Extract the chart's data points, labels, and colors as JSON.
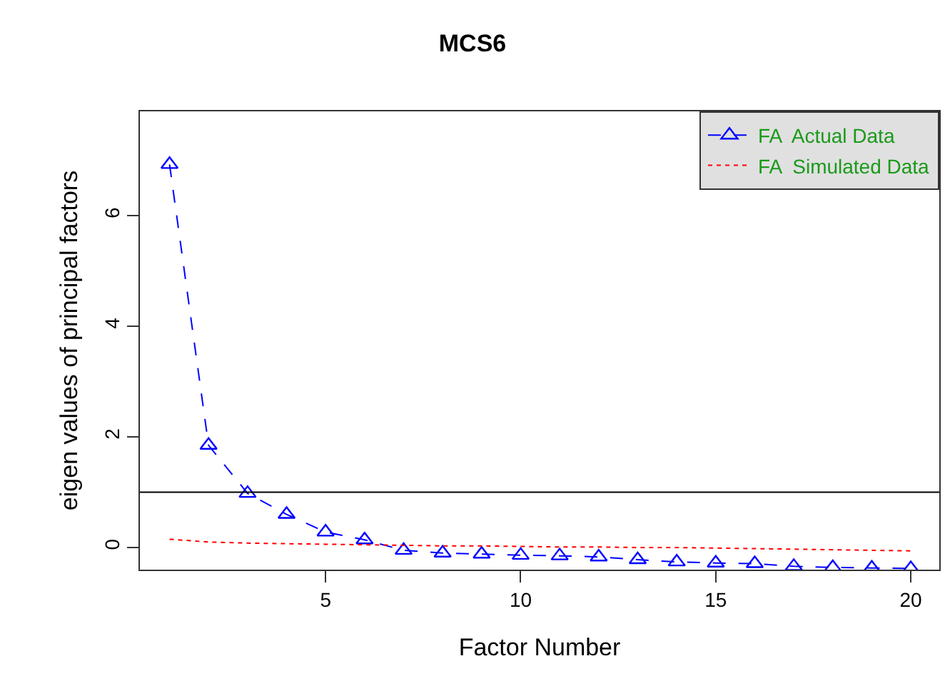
{
  "chart_data": {
    "type": "line",
    "title": "MCS6",
    "xlabel": "Factor Number",
    "ylabel": "eigen values of principal factors",
    "x": [
      1,
      2,
      3,
      4,
      5,
      6,
      7,
      8,
      9,
      10,
      11,
      12,
      13,
      14,
      15,
      16,
      17,
      18,
      19,
      20
    ],
    "series": [
      {
        "name": "FA  Actual Data",
        "color": "#0000ff",
        "marker": "triangle",
        "line_style": "dashed",
        "values": [
          6.93,
          1.85,
          0.98,
          0.6,
          0.28,
          0.14,
          -0.05,
          -0.1,
          -0.12,
          -0.14,
          -0.15,
          -0.17,
          -0.22,
          -0.26,
          -0.28,
          -0.29,
          -0.34,
          -0.36,
          -0.37,
          -0.38
        ]
      },
      {
        "name": "FA  Simulated Data",
        "color": "#ff0000",
        "marker": "none",
        "line_style": "dotted",
        "values": [
          0.15,
          0.1,
          0.08,
          0.07,
          0.06,
          0.05,
          0.04,
          0.03,
          0.03,
          0.02,
          0.01,
          0.01,
          0.0,
          0.0,
          -0.01,
          -0.02,
          -0.03,
          -0.04,
          -0.05,
          -0.06
        ]
      }
    ],
    "ref_lines": [
      {
        "axis": "y",
        "value": 1,
        "color": "#000000"
      }
    ],
    "xlim": [
      0.24,
      20.73
    ],
    "ylim": [
      -0.4,
      7.89
    ],
    "xticks": [
      5,
      10,
      15,
      20
    ],
    "yticks": [
      0,
      2,
      4,
      6
    ],
    "grid": false,
    "legend": "top right"
  }
}
